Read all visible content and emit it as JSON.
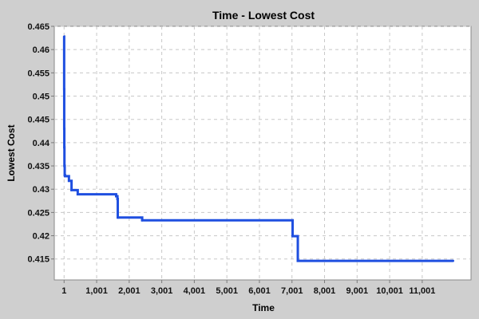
{
  "chart_data": {
    "type": "line",
    "title": "Time - Lowest Cost",
    "xlabel": "Time",
    "ylabel": "Lowest Cost",
    "xlim": [
      -300,
      12500
    ],
    "ylim": [
      0.4105,
      0.465
    ],
    "x_ticks": [
      1,
      1001,
      2001,
      3001,
      4001,
      5001,
      6001,
      7001,
      8001,
      9001,
      10001,
      11001
    ],
    "x_tick_labels": [
      "1",
      "1,001",
      "2,001",
      "3,001",
      "4,001",
      "5,001",
      "6,001",
      "7,001",
      "8,001",
      "9,001",
      "10,001",
      "11,001"
    ],
    "y_ticks": [
      0.415,
      0.42,
      0.425,
      0.43,
      0.435,
      0.44,
      0.445,
      0.45,
      0.455,
      0.46,
      0.465
    ],
    "y_tick_labels": [
      "0.415",
      "0.42",
      "0.425",
      "0.43",
      "0.435",
      "0.44",
      "0.445",
      "0.45",
      "0.455",
      "0.46",
      "0.465"
    ],
    "grid": true,
    "series": [
      {
        "name": "Lowest Cost",
        "color": "#1f4fe0",
        "x": [
          1,
          3,
          5,
          8,
          12,
          20,
          30,
          60,
          100,
          150,
          170,
          230,
          380,
          420,
          1580,
          1600,
          1620,
          1640,
          1650,
          1680,
          2350,
          2400,
          7000,
          7020,
          7150,
          7180,
          11950
        ],
        "y": [
          0.4628,
          0.4515,
          0.443,
          0.439,
          0.435,
          0.433,
          0.4328,
          0.4328,
          0.4328,
          0.4318,
          0.4318,
          0.4298,
          0.4298,
          0.4289,
          0.4289,
          0.4285,
          0.4285,
          0.4279,
          0.4239,
          0.4239,
          0.4239,
          0.4233,
          0.4233,
          0.4199,
          0.4199,
          0.4146,
          0.4146
        ]
      }
    ]
  }
}
